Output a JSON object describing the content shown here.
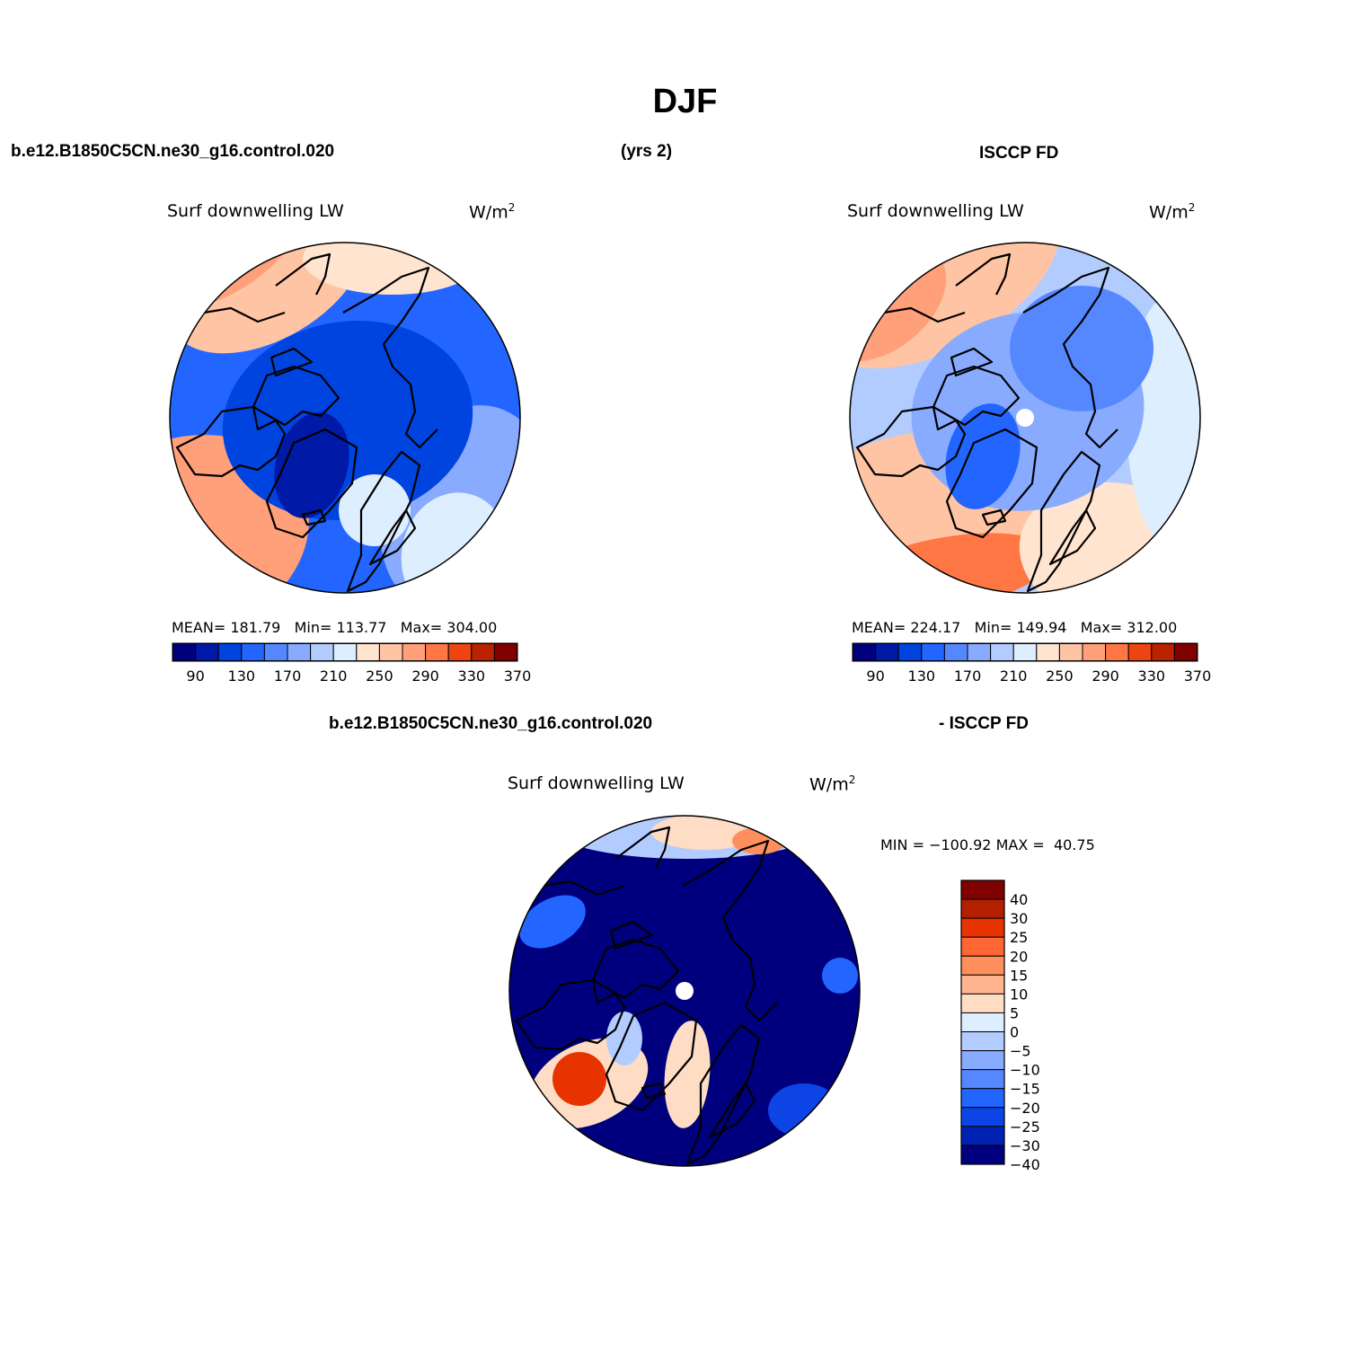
{
  "figure": {
    "title": "DJF",
    "case_label": "b.e12.B1850C5CN.ne30_g16.control.020",
    "years_label": "(yrs 2)",
    "obs_label": "ISCCP FD",
    "diff_case_label": "b.e12.B1850C5CN.ne30_g16.control.020",
    "diff_obs_label": "- ISCCP FD"
  },
  "colors": {
    "sequential": [
      "#00007f",
      "#0019a6",
      "#0044e0",
      "#2266ff",
      "#5588ff",
      "#88aaff",
      "#b3ccff",
      "#ddeeff",
      "#ffe4d0",
      "#ffc4a3",
      "#ffa07a",
      "#ff7744",
      "#ee4411",
      "#bb2200",
      "#800000"
    ],
    "diff": [
      "#800000",
      "#b22000",
      "#e63300",
      "#ff6633",
      "#ff8f5c",
      "#ffb38f",
      "#ffdcc4",
      "#ddeeff",
      "#b3ccff",
      "#88aaff",
      "#5588ff",
      "#2266ff",
      "#0d44e6",
      "#0022b3",
      "#00007f"
    ],
    "land_outline": "#000000",
    "missing": "#ffffff"
  },
  "chart_data": [
    {
      "type": "heatmap",
      "subtype": "polar-stereographic-map",
      "projection": "north-polar-stereographic",
      "title": "Surf downwelling LW",
      "units_base": "W/m",
      "units_exp": "2",
      "stats": {
        "mean": 181.79,
        "min": 113.77,
        "max": 304.0
      },
      "stats_text": {
        "mean_label": "MEAN=",
        "mean": "181.79",
        "min_label": "Min=",
        "min": "113.77",
        "max_label": "Max=",
        "max": "304.00"
      },
      "levels": [
        90,
        110,
        130,
        150,
        170,
        190,
        210,
        230,
        250,
        270,
        290,
        310,
        330,
        350,
        370
      ],
      "tick_labels": [
        "90",
        "130",
        "170",
        "210",
        "250",
        "290",
        "330",
        "370"
      ],
      "colorbar": "horizontal"
    },
    {
      "type": "heatmap",
      "subtype": "polar-stereographic-map",
      "projection": "north-polar-stereographic",
      "title": "Surf downwelling LW",
      "units_base": "W/m",
      "units_exp": "2",
      "stats": {
        "mean": 224.17,
        "min": 149.94,
        "max": 312.0
      },
      "stats_text": {
        "mean_label": "MEAN=",
        "mean": "224.17",
        "min_label": "Min=",
        "min": "149.94",
        "max_label": "Max=",
        "max": "312.00"
      },
      "levels": [
        90,
        110,
        130,
        150,
        170,
        190,
        210,
        230,
        250,
        270,
        290,
        310,
        330,
        350,
        370
      ],
      "tick_labels": [
        "90",
        "130",
        "170",
        "210",
        "250",
        "290",
        "330",
        "370"
      ],
      "colorbar": "horizontal"
    },
    {
      "type": "heatmap",
      "subtype": "polar-stereographic-map",
      "projection": "north-polar-stereographic",
      "title": "Surf downwelling LW",
      "units_base": "W/m",
      "units_exp": "2",
      "stats": {
        "min": -100.92,
        "max": 40.75
      },
      "stats_text": {
        "min_label": "MIN =",
        "min": "−100.92",
        "max_label": "MAX =",
        "max": "40.75"
      },
      "levels": [
        40,
        30,
        25,
        20,
        15,
        10,
        5,
        0,
        -5,
        -10,
        -15,
        -20,
        -25,
        -30,
        -40
      ],
      "tick_labels": [
        "40",
        "30",
        "25",
        "20",
        "15",
        "10",
        "5",
        "0",
        "−5",
        "−10",
        "−15",
        "−20",
        "−25",
        "−30",
        "−40"
      ],
      "colorbar": "vertical"
    }
  ]
}
